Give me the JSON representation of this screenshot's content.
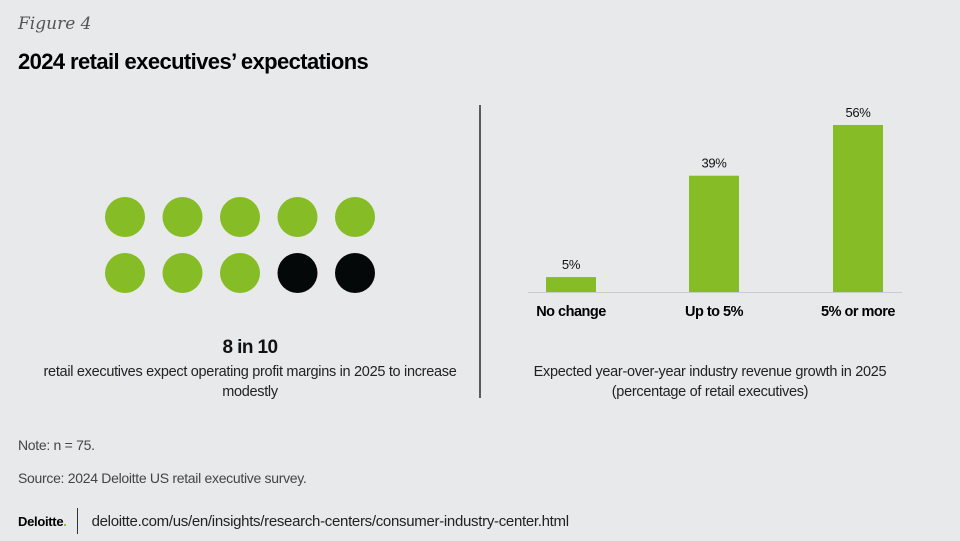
{
  "header": {
    "figure_label": "Figure 4",
    "title": "2024 retail executives’ expectations"
  },
  "left_panel": {
    "icon_array": {
      "total": 10,
      "highlighted": 8,
      "columns": 5,
      "highlight_color": "#86bc25",
      "rest_color": "#050809"
    },
    "stat": "8 in 10",
    "description": "retail executives expect operating profit margins in 2025 to increase modestly"
  },
  "chart_data": {
    "type": "bar",
    "title": "",
    "categories": [
      "No change",
      "Up to 5%",
      "5% or more"
    ],
    "values": [
      5,
      39,
      56
    ],
    "value_labels": [
      "5%",
      "39%",
      "56%"
    ],
    "unit": "%",
    "xlabel": "Expected year-over-year industry revenue growth in 2025",
    "xlabel_sub": "(percentage of retail executives)",
    "ylabel": "",
    "ylim": [
      0,
      56
    ],
    "grid": false,
    "legend": "none",
    "bar_color": "#86bc25"
  },
  "footer": {
    "note": "Note: n = 75.",
    "source": "Source: 2024 Deloitte US retail executive survey.",
    "logo_text": "Deloitte",
    "logo_dot": ".",
    "url": "deloitte.com/us/en/insights/research-centers/consumer-industry-center.html"
  }
}
